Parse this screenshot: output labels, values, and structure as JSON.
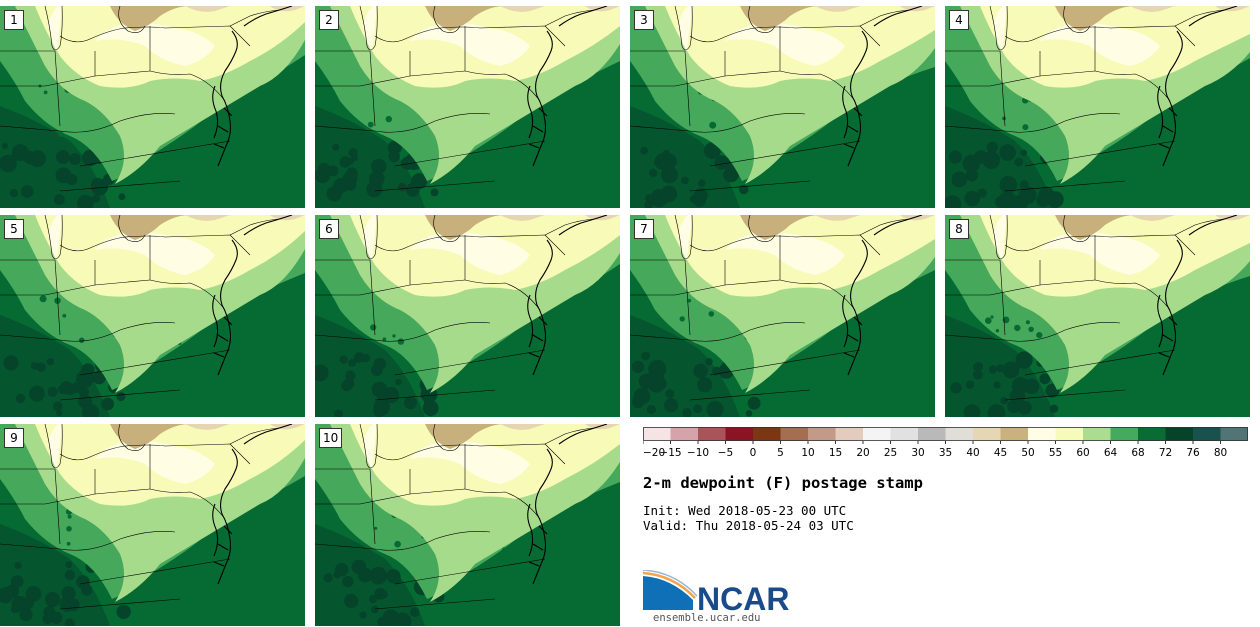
{
  "title": "2-m dewpoint (F) postage stamp",
  "init": {
    "label": "Init:",
    "value": "Wed 2018-05-23 00 UTC"
  },
  "valid": {
    "label": "Valid:",
    "value": "Thu 2018-05-24 03 UTC"
  },
  "logo": {
    "text": "NCAR",
    "website": "ensemble.ucar.edu"
  },
  "members": [
    "1",
    "2",
    "3",
    "4",
    "5",
    "6",
    "7",
    "8",
    "9",
    "10"
  ],
  "colorbar": {
    "tick_labels": [
      "−20",
      "−15",
      "−10",
      "−5",
      "0",
      "5",
      "10",
      "15",
      "20",
      "25",
      "30",
      "35",
      "40",
      "45",
      "50",
      "55",
      "60",
      "64",
      "68",
      "72",
      "76",
      "80"
    ],
    "colors": [
      "#f6e3e4",
      "#d6a3aa",
      "#a85459",
      "#8a1423",
      "#7c3612",
      "#a66e51",
      "#c39a88",
      "#e3cbbe",
      "#f4f4f4",
      "#e1e1e1",
      "#b9b9b9",
      "#dfdfd8",
      "#e5d7b3",
      "#c9b27c",
      "#fffde6",
      "#f7fbb9",
      "#aadd8f",
      "#46aa5e",
      "#096c35",
      "#06442a",
      "#18514e",
      "#517576"
    ]
  },
  "map_colors": {
    "tan": "#c8b07c",
    "tan_light": "#e5d6b1",
    "cream": "#fffde4",
    "pale_yellow": "#f7fbb7",
    "light_green": "#a7db8c",
    "mid_green": "#45a85b",
    "dark_green": "#066a33",
    "darkest_green": "#05432a"
  }
}
